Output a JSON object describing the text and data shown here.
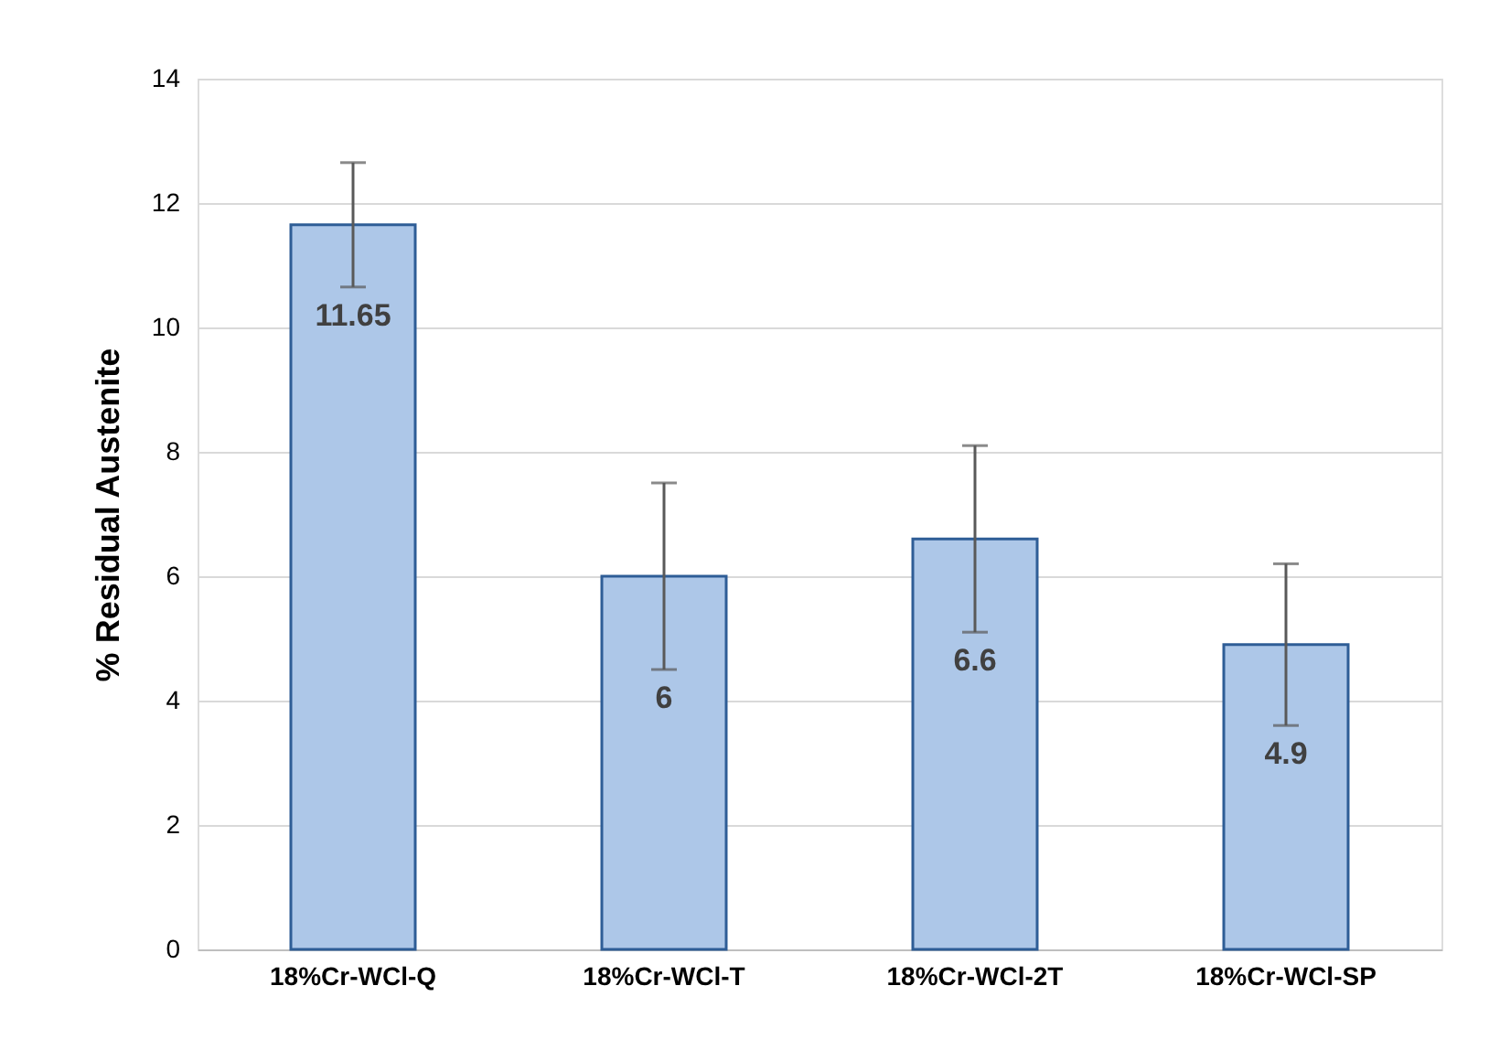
{
  "chart_data": {
    "type": "bar",
    "ylabel": "% Residual Austenite",
    "categories": [
      "18%Cr-WCl-Q",
      "18%Cr-WCl-T",
      "18%Cr-WCl-2T",
      "18%Cr-WCl-SP"
    ],
    "values": [
      11.65,
      6,
      6.6,
      4.9
    ],
    "errors": [
      1,
      1.5,
      1.5,
      1.3
    ],
    "color": "#adc7e8",
    "data_labels": true,
    "ylim": [
      0,
      14
    ],
    "yticks": [
      0,
      2,
      4,
      6,
      8,
      10,
      12,
      14
    ],
    "grid": "y"
  }
}
